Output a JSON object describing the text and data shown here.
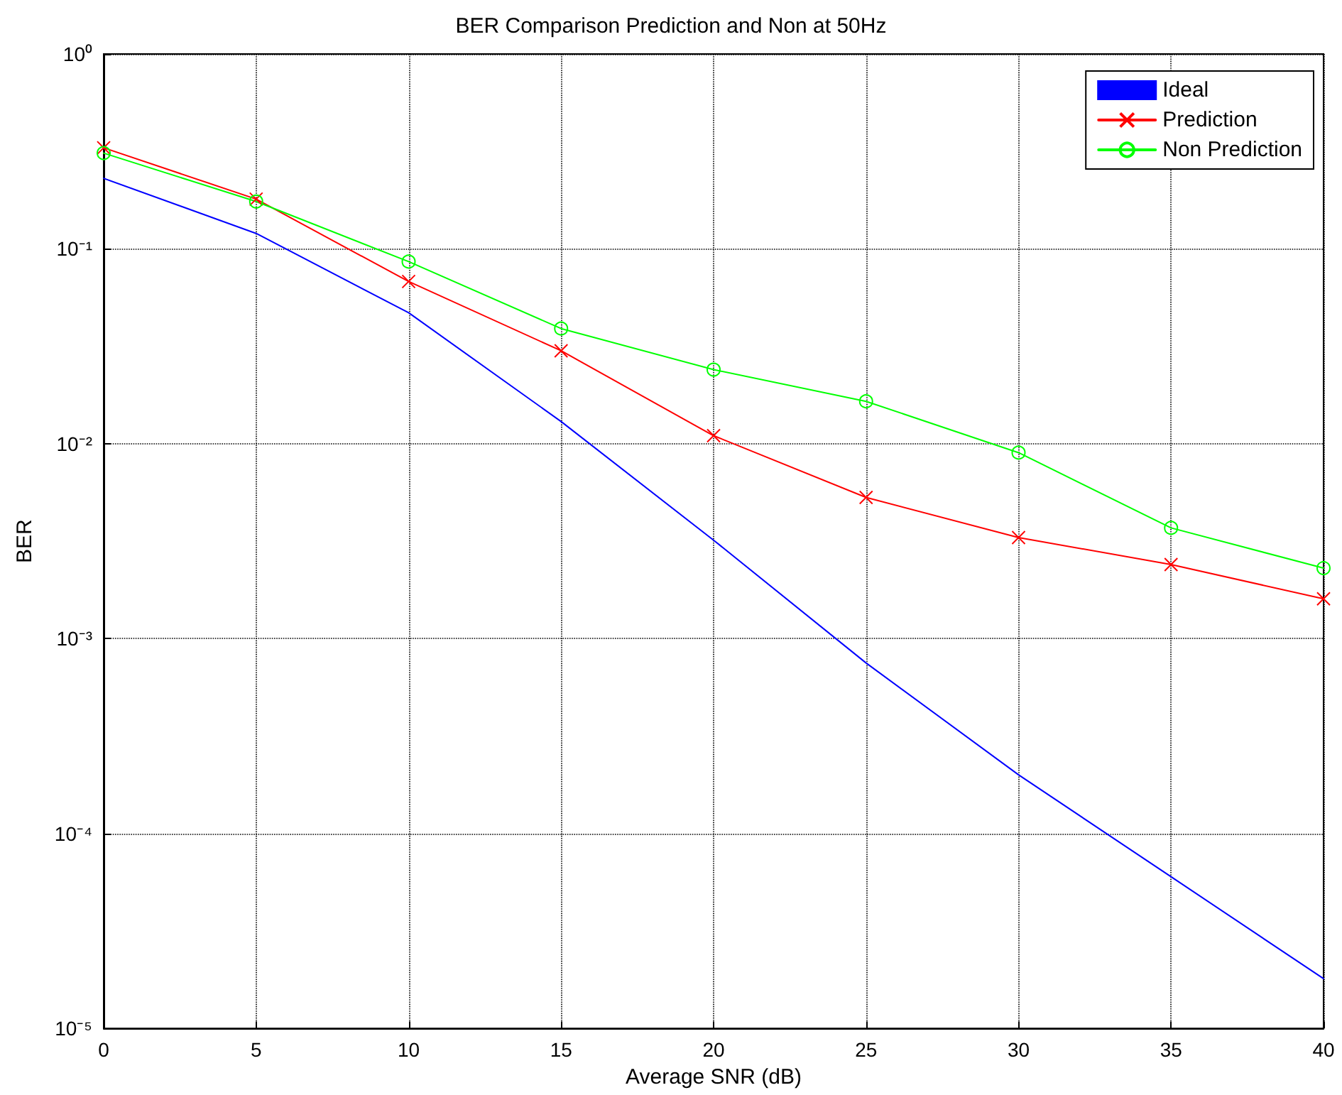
{
  "chart_data": {
    "type": "line",
    "title": "BER Comparison Prediction and Non at 50Hz",
    "xlabel": "Average SNR (dB)",
    "ylabel": "BER",
    "x": [
      0,
      5,
      10,
      15,
      20,
      25,
      30,
      35,
      40
    ],
    "series": [
      {
        "name": "Ideal",
        "color": "#0000ff",
        "marker": "none",
        "values": [
          0.23,
          0.12,
          0.047,
          0.013,
          0.0032,
          0.00075,
          0.0002,
          6e-05,
          1.8e-05
        ]
      },
      {
        "name": "Prediction",
        "color": "#ff0000",
        "marker": "cross",
        "values": [
          0.33,
          0.18,
          0.068,
          0.03,
          0.011,
          0.0053,
          0.0033,
          0.0024,
          0.0016
        ]
      },
      {
        "name": "Non Prediction",
        "color": "#00ff00",
        "marker": "circle",
        "values": [
          0.31,
          0.175,
          0.086,
          0.039,
          0.024,
          0.0165,
          0.009,
          0.0037,
          0.0023
        ]
      }
    ],
    "log": "y",
    "grid": true,
    "legend": "top right",
    "line_style": "solid",
    "xlim": [
      0,
      40
    ],
    "xticks": [
      0,
      5,
      10,
      15,
      20,
      25,
      30,
      35,
      40
    ],
    "ylim": [
      1e-05,
      1
    ],
    "yticks": [
      {
        "value": 1e-05,
        "label": "10⁻⁵"
      },
      {
        "value": 0.0001,
        "label": "10⁻⁴"
      },
      {
        "value": 0.001,
        "label": "10⁻³"
      },
      {
        "value": 0.01,
        "label": "10⁻²"
      },
      {
        "value": 0.1,
        "label": "10⁻¹"
      },
      {
        "value": 1,
        "label": "10⁰"
      }
    ]
  }
}
